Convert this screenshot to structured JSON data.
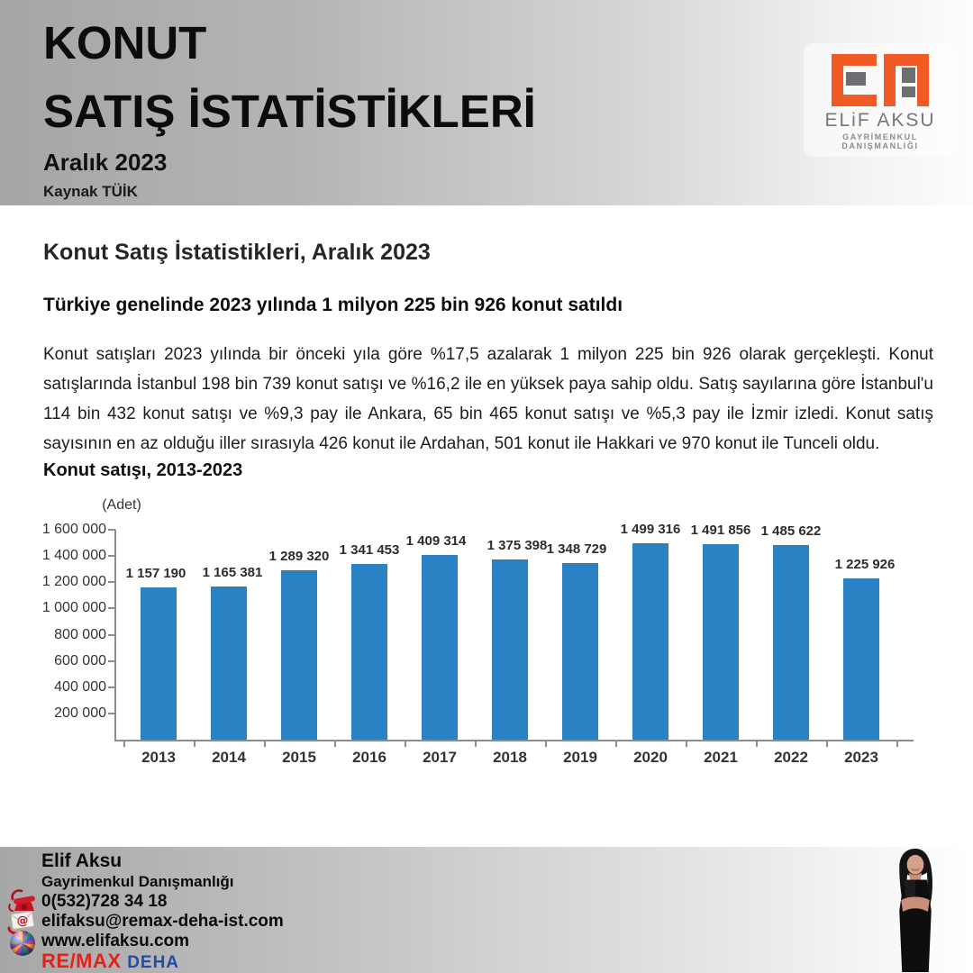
{
  "header": {
    "title_line1": "KONUT",
    "title_line2": "SATIŞ İSTATİSTİKLERİ",
    "subtitle": "Aralık 2023",
    "source": "Kaynak TÜİK",
    "brand": {
      "name": "ELiF AKSU",
      "tagline": "GAYRİMENKUL DANIŞMANLIĞI",
      "logo_orange": "#f15a24",
      "logo_gray": "#6d6e71"
    }
  },
  "report": {
    "heading": "Konut Satış İstatistikleri, Aralık 2023",
    "lead": "Türkiye genelinde 2023 yılında 1 milyon 225 bin 926 konut satıldı",
    "body": "Konut satışları 2023 yılında bir önceki yıla göre %17,5 azalarak 1 milyon 225 bin 926 olarak gerçekleşti. Konut satışlarında İstanbul 198 bin 739 konut satışı ve %16,2 ile en yüksek paya sahip oldu. Satış sayılarına göre İstanbul'u 114 bin 432 konut satışı ve %9,3 pay ile Ankara, 65 bin 465 konut satışı ve %5,3 pay ile İzmir izledi. Konut satış sayısının en az olduğu iller sırasıyla 426 konut ile Ardahan, 501 konut ile Hakkari ve 970 konut ile Tunceli oldu."
  },
  "chart_data": {
    "type": "bar",
    "title": "Konut satışı, 2013-2023",
    "unit_label": "(Adet)",
    "categories": [
      "2013",
      "2014",
      "2015",
      "2016",
      "2017",
      "2018",
      "2019",
      "2020",
      "2021",
      "2022",
      "2023"
    ],
    "values": [
      1157190,
      1165381,
      1289320,
      1341453,
      1409314,
      1375398,
      1348729,
      1499316,
      1491856,
      1485622,
      1225926
    ],
    "value_labels": [
      "1 157 190",
      "1 165 381",
      "1 289 320",
      "1 341 453",
      "1 409 314",
      "1 375 398",
      "1 348 729",
      "1 499 316",
      "1 491 856",
      "1 485 622",
      "1 225 926"
    ],
    "label_dx": [
      -3,
      4,
      0,
      0,
      -4,
      8,
      -4,
      0,
      0,
      0,
      4
    ],
    "y_ticks": [
      "1 600 000",
      "1 400 000",
      "1 200 000",
      "1 000 000",
      "800 000",
      "600 000",
      "400 000",
      "200 000"
    ],
    "ylim": [
      0,
      1600000
    ],
    "bar_color": "#2a81c3",
    "grid": false,
    "legend": "none"
  },
  "footer": {
    "agent_name": "Elif Aksu",
    "agent_role": "Gayrimenkul Danışmanlığı",
    "phone": "0(532)728 34 18",
    "email": "elifaksu@remax-deha-ist.com",
    "website": "www.elifaksu.com",
    "brokerage": {
      "remax": "RE/MAX",
      "sub": "DEHA"
    },
    "icons": {
      "phone": "phone-icon",
      "email": "email-icon",
      "web": "globe-icon"
    },
    "colors": {
      "remax_red": "#e2231a",
      "deha_blue": "#1f4ea1"
    }
  }
}
